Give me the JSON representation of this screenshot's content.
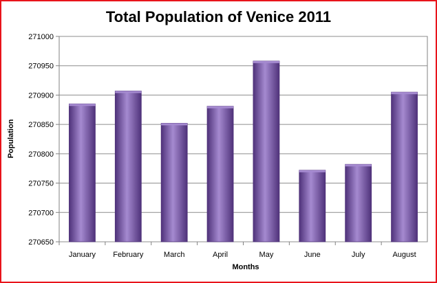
{
  "chart_data": {
    "type": "bar",
    "title": "Total Population of Venice 2011",
    "xlabel": "Months",
    "ylabel": "Population",
    "categories": [
      "January",
      "February",
      "March",
      "April",
      "May",
      "June",
      "July",
      "August"
    ],
    "values": [
      270885,
      270907,
      270852,
      270881,
      270958,
      270772,
      270782,
      270905
    ],
    "ylim": [
      270650,
      271000
    ],
    "yticks": [
      "271000",
      "270950",
      "270900",
      "270850",
      "270800",
      "270750",
      "270700",
      "270650"
    ],
    "grid": true,
    "legend": "none",
    "bar_color": "#7e5ab2",
    "bar_color_dark": "#4f327a",
    "bar_color_light": "#a58ad0",
    "frame_color": "#e8141b"
  }
}
